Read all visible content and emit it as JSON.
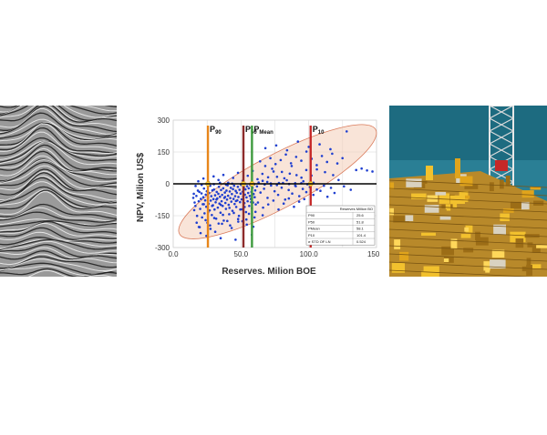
{
  "chart_data": {
    "type": "scatter",
    "title": "",
    "xlabel": "Reserves. Milion BOE",
    "ylabel": "NPV, Milion US$",
    "xlim": [
      0,
      150
    ],
    "ylim": [
      -300,
      300
    ],
    "x_ticks": [
      "0.0",
      "50.0",
      "100.0",
      "150.0"
    ],
    "y_ticks": [
      "300",
      "150",
      "0",
      "-150",
      "-300"
    ],
    "grid": true,
    "series": [
      {
        "name": "",
        "color": "#1f3fd0",
        "points": [
          [
            15.2,
            -47
          ],
          [
            15.8,
            -88
          ],
          [
            16.4,
            -104
          ],
          [
            17.1,
            -57
          ],
          [
            17.6,
            -151
          ],
          [
            18.2,
            -32
          ],
          [
            18.8,
            -82
          ],
          [
            19.3,
            -38
          ],
          [
            19.9,
            -118
          ],
          [
            20.4,
            -71
          ],
          [
            20.9,
            -45
          ],
          [
            21.3,
            -158
          ],
          [
            21.8,
            -96
          ],
          [
            22.2,
            -63
          ],
          [
            22.7,
            -22
          ],
          [
            23.1,
            -139
          ],
          [
            23.6,
            -78
          ],
          [
            24.0,
            -51
          ],
          [
            24.4,
            -108
          ],
          [
            24.8,
            -35
          ],
          [
            25.2,
            -183
          ],
          [
            25.7,
            -66
          ],
          [
            26.1,
            -94
          ],
          [
            26.5,
            -43
          ],
          [
            26.9,
            -125
          ],
          [
            27.3,
            -9
          ],
          [
            27.7,
            -79
          ],
          [
            28.1,
            -58
          ],
          [
            28.5,
            -147
          ],
          [
            28.9,
            -31
          ],
          [
            29.3,
            -101
          ],
          [
            29.7,
            -72
          ],
          [
            30.1,
            -27
          ],
          [
            30.5,
            -121
          ],
          [
            30.9,
            -54
          ],
          [
            31.3,
            -87
          ],
          [
            31.7,
            -164
          ],
          [
            32.1,
            -38
          ],
          [
            32.5,
            -69
          ],
          [
            32.9,
            -112
          ],
          [
            33.3,
            -47
          ],
          [
            33.7,
            -14
          ],
          [
            34.1,
            -93
          ],
          [
            34.5,
            -61
          ],
          [
            34.9,
            -136
          ],
          [
            35.3,
            -29
          ],
          [
            35.7,
            -82
          ],
          [
            36.1,
            -52
          ],
          [
            36.5,
            -104
          ],
          [
            36.9,
            -21
          ],
          [
            37.3,
            -173
          ],
          [
            37.7,
            -66
          ],
          [
            38.1,
            -41
          ],
          [
            38.5,
            -90
          ],
          [
            38.9,
            -118
          ],
          [
            39.3,
            -32
          ],
          [
            39.7,
            -74
          ],
          [
            40.1,
            -7
          ],
          [
            40.5,
            -56
          ],
          [
            40.9,
            -99
          ],
          [
            41.3,
            -143
          ],
          [
            41.7,
            -36
          ],
          [
            42.1,
            -67
          ],
          [
            42.5,
            -19
          ],
          [
            42.9,
            -84
          ],
          [
            43.3,
            -48
          ],
          [
            43.7,
            -127
          ],
          [
            44.1,
            -25
          ],
          [
            44.5,
            -71
          ],
          [
            44.9,
            -9
          ],
          [
            45.3,
            -95
          ],
          [
            45.7,
            -58
          ],
          [
            46.1,
            -33
          ],
          [
            46.5,
            -109
          ],
          [
            46.9,
            -42
          ],
          [
            47.3,
            -78
          ],
          [
            47.7,
            -14
          ],
          [
            48.1,
            -62
          ],
          [
            48.5,
            -151
          ],
          [
            48.9,
            -28
          ],
          [
            49.3,
            -86
          ],
          [
            49.7,
            -46
          ],
          [
            50.1,
            -5
          ],
          [
            50.5,
            -73
          ],
          [
            50.9,
            -120
          ],
          [
            51.3,
            -37
          ],
          [
            51.7,
            -59
          ],
          [
            52.1,
            -17
          ],
          [
            52.5,
            -91
          ],
          [
            52.9,
            -51
          ],
          [
            53.3,
            -26
          ],
          [
            53.7,
            -133
          ],
          [
            54.1,
            -64
          ],
          [
            54.5,
            -11
          ],
          [
            54.9,
            -82
          ],
          [
            55.3,
            -43
          ],
          [
            55.7,
            -21
          ],
          [
            56.1,
            -104
          ],
          [
            56.5,
            -57
          ],
          [
            56.9,
            -6
          ],
          [
            57.3,
            -71
          ],
          [
            57.7,
            -38
          ],
          [
            58.1,
            -115
          ],
          [
            58.5,
            -19
          ],
          [
            58.9,
            -88
          ],
          [
            59.3,
            -48
          ],
          [
            59.7,
            -2
          ],
          [
            60.1,
            -63
          ],
          [
            60.5,
            -31
          ],
          [
            60.9,
            -97
          ],
          [
            18.5,
            12
          ],
          [
            22.3,
            25
          ],
          [
            26.0,
            8
          ],
          [
            29.8,
            35
          ],
          [
            33.4,
            18
          ],
          [
            37.0,
            42
          ],
          [
            40.6,
            5
          ],
          [
            44.2,
            28
          ],
          [
            47.8,
            52
          ],
          [
            51.4,
            15
          ],
          [
            55.0,
            38
          ],
          [
            58.6,
            61
          ],
          [
            62.2,
            22
          ],
          [
            65.8,
            47
          ],
          [
            69.4,
            9
          ],
          [
            73.0,
            71
          ],
          [
            76.6,
            33
          ],
          [
            80.2,
            56
          ],
          [
            83.8,
            17
          ],
          [
            87.4,
            84
          ],
          [
            91.0,
            41
          ],
          [
            94.6,
            29
          ],
          [
            98.2,
            65
          ],
          [
            61.8,
            -12
          ],
          [
            64.4,
            -41
          ],
          [
            67.0,
            -23
          ],
          [
            69.6,
            -66
          ],
          [
            72.2,
            -8
          ],
          [
            74.8,
            -35
          ],
          [
            77.4,
            -52
          ],
          [
            80.0,
            -18
          ],
          [
            82.6,
            -74
          ],
          [
            85.2,
            -29
          ],
          [
            87.8,
            -46
          ],
          [
            90.4,
            -11
          ],
          [
            93.0,
            -58
          ],
          [
            95.6,
            -24
          ],
          [
            98.2,
            -39
          ],
          [
            100.8,
            -15
          ],
          [
            103.4,
            -52
          ],
          [
            106.0,
            -27
          ],
          [
            108.6,
            -33
          ],
          [
            111.2,
            -9
          ],
          [
            113.8,
            -61
          ],
          [
            116.4,
            -19
          ],
          [
            119.0,
            -43
          ],
          [
            62.5,
            -88
          ],
          [
            66.3,
            -112
          ],
          [
            70.1,
            -97
          ],
          [
            73.9,
            -79
          ],
          [
            77.7,
            -121
          ],
          [
            81.5,
            -93
          ],
          [
            85.3,
            -69
          ],
          [
            89.1,
            -108
          ],
          [
            92.9,
            -84
          ],
          [
            96.7,
            -72
          ],
          [
            64.1,
            106
          ],
          [
            67.9,
            84
          ],
          [
            71.7,
            121
          ],
          [
            75.5,
            93
          ],
          [
            79.3,
            112
          ],
          [
            83.1,
            138
          ],
          [
            86.9,
            97
          ],
          [
            90.7,
            127
          ],
          [
            94.5,
            109
          ],
          [
            98.3,
            152
          ],
          [
            102.1,
            118
          ],
          [
            105.9,
            88
          ],
          [
            109.7,
            131
          ],
          [
            113.5,
            103
          ],
          [
            117.3,
            142
          ],
          [
            121.1,
            96
          ],
          [
            124.9,
            121
          ],
          [
            68.0,
            168
          ],
          [
            76.0,
            181
          ],
          [
            84.0,
            158
          ],
          [
            92.0,
            199
          ],
          [
            100.0,
            174
          ],
          [
            108.0,
            186
          ],
          [
            116.0,
            163
          ],
          [
            128.0,
            247
          ],
          [
            135.0,
            65
          ],
          [
            139.0,
            72
          ],
          [
            143.0,
            63
          ],
          [
            147.0,
            58
          ],
          [
            126.0,
            -12
          ],
          [
            131.0,
            -28
          ],
          [
            122.0,
            18
          ],
          [
            118.0,
            41
          ],
          [
            112.0,
            55
          ],
          [
            106.0,
            68
          ],
          [
            102.0,
            39
          ],
          [
            96.0,
            12
          ],
          [
            90.0,
            3
          ],
          [
            86.0,
            48
          ],
          [
            82.0,
            26
          ],
          [
            78.0,
            4
          ],
          [
            74.0,
            58
          ],
          [
            70.0,
            31
          ],
          [
            66.0,
            14
          ],
          [
            24.5,
            -245
          ],
          [
            31.0,
            -226
          ],
          [
            27.5,
            -212
          ],
          [
            19.5,
            -204
          ],
          [
            42.0,
            -196
          ],
          [
            36.0,
            -188
          ],
          [
            48.0,
            -178
          ],
          [
            54.0,
            -168
          ],
          [
            60.0,
            -158
          ],
          [
            66.0,
            -148
          ],
          [
            35.0,
            -256
          ],
          [
            58.0,
            -240
          ],
          [
            46.0,
            -263
          ],
          [
            16.5,
            -10
          ],
          [
            21.0,
            -5
          ],
          [
            25.5,
            2
          ],
          [
            30.0,
            -2
          ],
          [
            34.5,
            5
          ],
          [
            39.0,
            -4
          ],
          [
            43.5,
            1
          ],
          [
            63.0,
            6
          ],
          [
            67.5,
            -3
          ],
          [
            72.0,
            2
          ],
          [
            76.5,
            -6
          ],
          [
            81.0,
            4
          ],
          [
            85.5,
            -1
          ],
          [
            90.0,
            -8
          ],
          [
            94.5,
            3
          ],
          [
            99.0,
            -2
          ],
          [
            103.5,
            5
          ],
          [
            14.8,
            -66
          ],
          [
            15.5,
            -124
          ],
          [
            17.3,
            -183
          ],
          [
            18.9,
            -203
          ],
          [
            20.2,
            -232
          ],
          [
            22.6,
            -96
          ],
          [
            23.9,
            -171
          ],
          [
            25.8,
            -133
          ],
          [
            27.2,
            -196
          ],
          [
            28.7,
            -104
          ],
          [
            30.3,
            -161
          ],
          [
            31.9,
            -74
          ],
          [
            33.5,
            -187
          ],
          [
            35.1,
            -99
          ],
          [
            36.7,
            -146
          ],
          [
            38.3,
            -62
          ],
          [
            39.9,
            -175
          ],
          [
            41.5,
            -113
          ],
          [
            43.1,
            -208
          ],
          [
            44.7,
            -137
          ],
          [
            46.3,
            -81
          ],
          [
            47.9,
            -166
          ],
          [
            49.5,
            -121
          ],
          [
            51.1,
            -176
          ],
          [
            52.7,
            -109
          ],
          [
            54.3,
            -192
          ],
          [
            55.9,
            -141
          ],
          [
            57.5,
            -86
          ],
          [
            59.1,
            -202
          ],
          [
            60.7,
            -132
          ]
        ]
      }
    ],
    "percentiles": [
      {
        "label": "P",
        "sub": "90",
        "x": 25.6,
        "color": "#e8861a"
      },
      {
        "label": "P",
        "sub": "50",
        "x": 51.8,
        "color": "#8c2a2a"
      },
      {
        "label": "P",
        "sub": "Mean",
        "x": 58.1,
        "color": "#3e9a3e"
      },
      {
        "label": "P",
        "sub": "10",
        "x": 101.4,
        "color": "#c62828"
      }
    ],
    "ellipse": {
      "cx": 77,
      "cy": 10,
      "rx": 82,
      "ry": 125,
      "angle_deg": 28,
      "fill": "#f4cdb8",
      "stroke": "#d97a5a"
    },
    "zero_line": {
      "y": 0,
      "color": "#000000"
    },
    "table": {
      "header": "Reserves Million BO",
      "rows": [
        [
          "P90",
          "25.6"
        ],
        [
          "P50",
          "51.8"
        ],
        [
          "PMean",
          "58.1"
        ],
        [
          "P10",
          "101.4"
        ],
        [
          "σ  STD OF LN",
          "0.524"
        ]
      ]
    }
  },
  "images": {
    "seismic": "seismic-section",
    "photo": "offshore-platform"
  }
}
